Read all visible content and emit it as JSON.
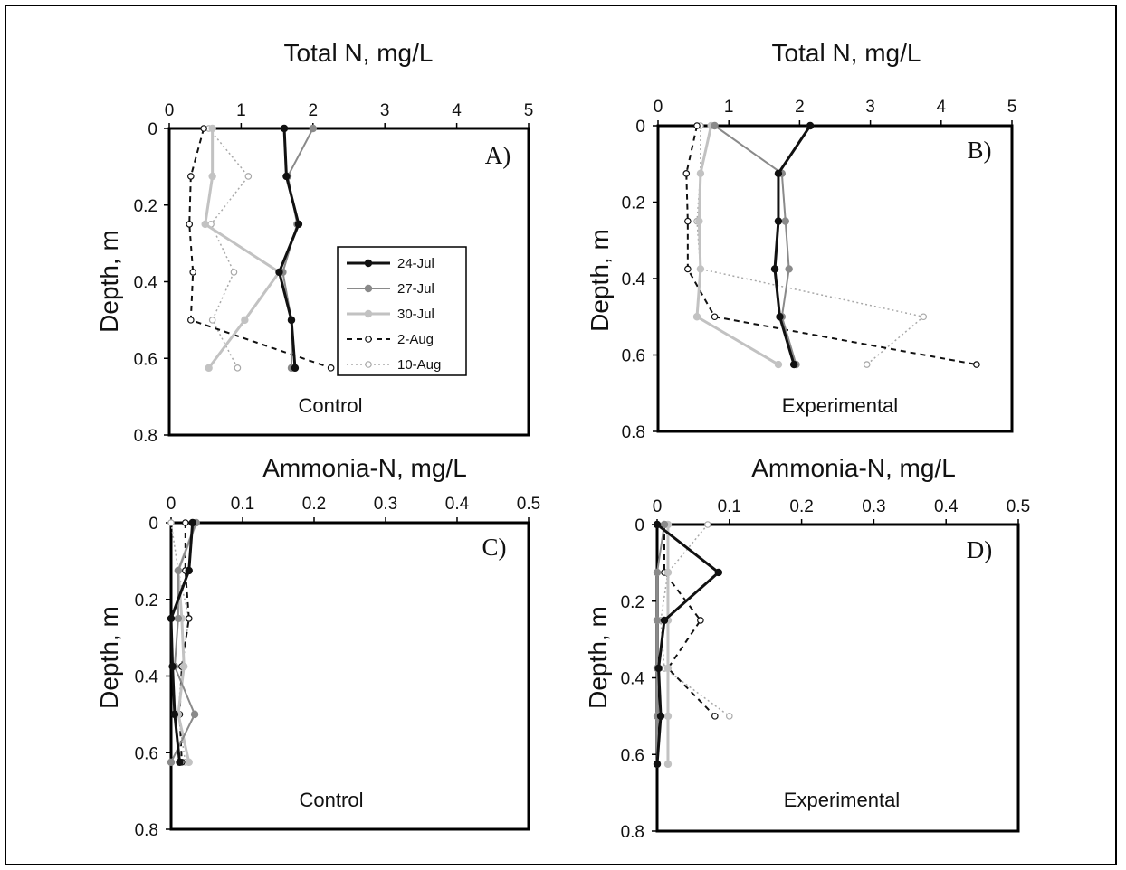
{
  "figure": {
    "legend": [
      {
        "label": "24-Jul",
        "color": "#111111",
        "dash": "",
        "width": 3,
        "marker": "filled"
      },
      {
        "label": "27-Jul",
        "color": "#8a8a8a",
        "dash": "",
        "width": 2,
        "marker": "filled"
      },
      {
        "label": "30-Jul",
        "color": "#c2c2c2",
        "dash": "",
        "width": 3,
        "marker": "filled"
      },
      {
        "label": "2-Aug",
        "color": "#111111",
        "dash": "6,5",
        "width": 2,
        "marker": "open"
      },
      {
        "label": "10-Aug",
        "color": "#a8a8a8",
        "dash": "2,3",
        "width": 1.5,
        "marker": "open"
      }
    ]
  },
  "chart_data": [
    {
      "type": "line",
      "panel": "A)",
      "title": "Total N, mg/L",
      "ylabel": "Depth, m",
      "note": "Control",
      "xlim": [
        0,
        5
      ],
      "ylim": [
        0,
        0.8
      ],
      "xticks": [
        "0",
        "1",
        "2",
        "3",
        "4",
        "5"
      ],
      "yticks": [
        "0",
        "0.2",
        "0.4",
        "0.6",
        "0.8"
      ],
      "legend_position": "center-right",
      "series": [
        {
          "name": "24-Jul",
          "x": [
            1.6,
            1.63,
            1.8,
            1.53,
            1.7,
            1.75
          ],
          "y": [
            0,
            0.125,
            0.25,
            0.375,
            0.5,
            0.625
          ]
        },
        {
          "name": "27-Jul",
          "x": [
            2.0,
            1.65,
            1.78,
            1.58,
            1.7,
            1.7
          ],
          "y": [
            0,
            0.125,
            0.25,
            0.375,
            0.5,
            0.625
          ]
        },
        {
          "name": "30-Jul",
          "x": [
            0.6,
            0.6,
            0.5,
            1.53,
            1.05,
            0.55
          ],
          "y": [
            0,
            0.125,
            0.25,
            0.375,
            0.5,
            0.625
          ]
        },
        {
          "name": "2-Aug",
          "x": [
            0.48,
            0.3,
            0.28,
            0.33,
            0.3,
            2.25
          ],
          "y": [
            0,
            0.125,
            0.25,
            0.375,
            0.5,
            0.625
          ]
        },
        {
          "name": "10-Aug",
          "x": [
            0.55,
            1.1,
            0.58,
            0.9,
            0.6,
            0.95
          ],
          "y": [
            0,
            0.125,
            0.25,
            0.375,
            0.5,
            0.625
          ]
        }
      ]
    },
    {
      "type": "line",
      "panel": "B)",
      "title": "Total N, mg/L",
      "ylabel": "Depth, m",
      "note": "Experimental",
      "xlim": [
        0,
        5
      ],
      "ylim": [
        0,
        0.8
      ],
      "xticks": [
        "0",
        "1",
        "2",
        "3",
        "4",
        "5"
      ],
      "yticks": [
        "0",
        "0.2",
        "0.4",
        "0.6",
        "0.8"
      ],
      "series": [
        {
          "name": "24-Jul",
          "x": [
            2.15,
            1.7,
            1.7,
            1.65,
            1.72,
            1.92
          ],
          "y": [
            0,
            0.125,
            0.25,
            0.375,
            0.5,
            0.625
          ]
        },
        {
          "name": "27-Jul",
          "x": [
            0.8,
            1.75,
            1.8,
            1.85,
            1.75,
            1.95
          ],
          "y": [
            0,
            0.125,
            0.25,
            0.375,
            0.5,
            0.625
          ]
        },
        {
          "name": "30-Jul",
          "x": [
            0.75,
            0.6,
            0.58,
            0.6,
            0.55,
            1.7
          ],
          "y": [
            0,
            0.125,
            0.25,
            0.375,
            0.5,
            0.625
          ]
        },
        {
          "name": "2-Aug",
          "x": [
            0.55,
            0.4,
            0.42,
            0.42,
            0.8,
            4.5
          ],
          "y": [
            0,
            0.125,
            0.25,
            0.375,
            0.5,
            0.625
          ]
        },
        {
          "name": "10-Aug",
          "x": [
            0.6,
            0.6,
            0.55,
            0.6,
            3.75,
            2.95
          ],
          "y": [
            0,
            0.125,
            0.25,
            0.375,
            0.5,
            0.625
          ]
        }
      ]
    },
    {
      "type": "line",
      "panel": "C)",
      "title": "Ammonia-N, mg/L",
      "ylabel": "Depth, m",
      "note": "Control",
      "xlim": [
        0,
        0.5
      ],
      "ylim": [
        0,
        0.8
      ],
      "xticks": [
        "0",
        "0.1",
        "0.2",
        "0.3",
        "0.4",
        "0.5"
      ],
      "yticks": [
        "0",
        "0.2",
        "0.4",
        "0.6",
        "0.8"
      ],
      "series": [
        {
          "name": "24-Jul",
          "x": [
            0.03,
            0.025,
            0.0,
            0.002,
            0.005,
            0.012
          ],
          "y": [
            0,
            0.125,
            0.25,
            0.375,
            0.5,
            0.625
          ]
        },
        {
          "name": "27-Jul",
          "x": [
            0.035,
            0.01,
            0.01,
            0.005,
            0.033,
            0.0
          ],
          "y": [
            0,
            0.125,
            0.25,
            0.375,
            0.5,
            0.625
          ]
        },
        {
          "name": "30-Jul",
          "x": [
            0.035,
            0.01,
            0.015,
            0.018,
            0.01,
            0.025
          ],
          "y": [
            0,
            0.125,
            0.25,
            0.375,
            0.5,
            0.625
          ]
        },
        {
          "name": "2-Aug",
          "x": [
            0.02,
            0.02,
            0.025,
            0.015,
            0.012,
            0.015
          ],
          "y": [
            0,
            0.125,
            0.25,
            0.375,
            0.5,
            0.625
          ]
        },
        {
          "name": "10-Aug",
          "x": [
            0.0,
            0.01,
            0.025,
            0.015,
            0.01,
            0.02
          ],
          "y": [
            0,
            0.125,
            0.25,
            0.375,
            0.5,
            0.625
          ]
        }
      ]
    },
    {
      "type": "line",
      "panel": "D)",
      "title": "Ammonia-N, mg/L",
      "ylabel": "Depth, m",
      "note": "Experimental",
      "xlim": [
        0,
        0.5
      ],
      "ylim": [
        0,
        0.8
      ],
      "xticks": [
        "0",
        "0.1",
        "0.2",
        "0.3",
        "0.4",
        "0.5"
      ],
      "yticks": [
        "0",
        "0.2",
        "0.4",
        "0.6",
        "0.8"
      ],
      "series": [
        {
          "name": "24-Jul",
          "x": [
            0.0,
            0.085,
            0.01,
            0.002,
            0.005,
            0.0
          ],
          "y": [
            0,
            0.125,
            0.25,
            0.375,
            0.5,
            0.625
          ]
        },
        {
          "name": "27-Jul",
          "x": [
            0.01,
            0.0,
            0.0,
            0.0,
            0.0,
            0.0
          ],
          "y": [
            0,
            0.125,
            0.25,
            0.375,
            0.5,
            0.625
          ]
        },
        {
          "name": "30-Jul",
          "x": [
            0.015,
            0.015,
            0.015,
            0.015,
            0.015,
            0.015
          ],
          "y": [
            0,
            0.125,
            0.25,
            0.375,
            0.5,
            0.625
          ]
        },
        {
          "name": "2-Aug",
          "x": [
            0.01,
            0.01,
            0.06,
            0.015,
            0.08,
            null
          ],
          "y": [
            0,
            0.125,
            0.25,
            0.375,
            0.5,
            0.625
          ]
        },
        {
          "name": "10-Aug",
          "x": [
            0.07,
            0.015,
            0.005,
            0.01,
            0.1,
            null
          ],
          "y": [
            0,
            0.125,
            0.25,
            0.375,
            0.5,
            0.625
          ]
        }
      ]
    }
  ]
}
